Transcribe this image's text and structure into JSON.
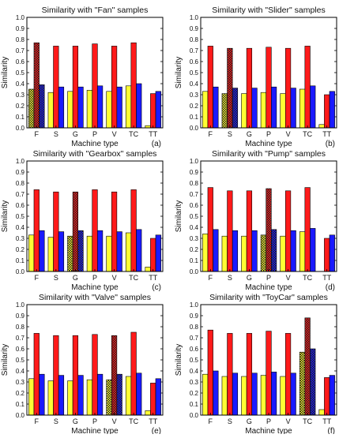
{
  "chart_data": [
    {
      "type": "bar",
      "panel": "(a)",
      "title": "Similarity with \"Fan\" samples",
      "xlabel": "Machine type",
      "ylabel": "Similarity",
      "ylim": [
        0,
        1.0
      ],
      "yticks": [
        "0.0",
        "0.1",
        "0.2",
        "0.3",
        "0.4",
        "0.5",
        "0.6",
        "0.7",
        "0.8",
        "0.9",
        "1.0"
      ],
      "categories": [
        "F",
        "S",
        "G",
        "P",
        "V",
        "TC",
        "TT"
      ],
      "highlight_index": 0,
      "series": [
        {
          "color": "#ffff33",
          "values": [
            0.35,
            0.32,
            0.33,
            0.34,
            0.33,
            0.38,
            0.02
          ]
        },
        {
          "color": "#ff1a1a",
          "values": [
            0.77,
            0.74,
            0.74,
            0.76,
            0.74,
            0.77,
            0.31
          ]
        },
        {
          "color": "#1a1aff",
          "values": [
            0.39,
            0.37,
            0.37,
            0.38,
            0.37,
            0.4,
            0.33
          ]
        }
      ]
    },
    {
      "type": "bar",
      "panel": "(b)",
      "title": "Similarity with \"Slider\" samples",
      "xlabel": "Machine type",
      "ylabel": "Similarity",
      "ylim": [
        0,
        1.0
      ],
      "yticks": [
        "0.0",
        "0.1",
        "0.2",
        "0.3",
        "0.4",
        "0.5",
        "0.6",
        "0.7",
        "0.8",
        "0.9",
        "1.0"
      ],
      "categories": [
        "F",
        "S",
        "G",
        "P",
        "V",
        "TC",
        "TT"
      ],
      "highlight_index": 1,
      "series": [
        {
          "color": "#ffff33",
          "values": [
            0.33,
            0.31,
            0.31,
            0.32,
            0.31,
            0.35,
            0.03
          ]
        },
        {
          "color": "#ff1a1a",
          "values": [
            0.74,
            0.72,
            0.72,
            0.73,
            0.72,
            0.74,
            0.3
          ]
        },
        {
          "color": "#1a1aff",
          "values": [
            0.37,
            0.36,
            0.36,
            0.37,
            0.36,
            0.38,
            0.33
          ]
        }
      ]
    },
    {
      "type": "bar",
      "panel": "(c)",
      "title": "Similarity with \"Gearbox\" samples",
      "xlabel": "Machine type",
      "ylabel": "Similarity",
      "ylim": [
        0,
        1.0
      ],
      "yticks": [
        "0.0",
        "0.1",
        "0.2",
        "0.3",
        "0.4",
        "0.5",
        "0.6",
        "0.7",
        "0.8",
        "0.9",
        "1.0"
      ],
      "categories": [
        "F",
        "S",
        "G",
        "P",
        "V",
        "TC",
        "TT"
      ],
      "highlight_index": 2,
      "series": [
        {
          "color": "#ffff33",
          "values": [
            0.33,
            0.31,
            0.32,
            0.32,
            0.32,
            0.35,
            0.04
          ]
        },
        {
          "color": "#ff1a1a",
          "values": [
            0.74,
            0.72,
            0.72,
            0.74,
            0.72,
            0.74,
            0.3
          ]
        },
        {
          "color": "#1a1aff",
          "values": [
            0.37,
            0.36,
            0.37,
            0.37,
            0.36,
            0.38,
            0.33
          ]
        }
      ]
    },
    {
      "type": "bar",
      "panel": "(d)",
      "title": "Similarity with \"Pump\" samples",
      "xlabel": "Machine type",
      "ylabel": "Similarity",
      "ylim": [
        0,
        1.0
      ],
      "yticks": [
        "0.0",
        "0.1",
        "0.2",
        "0.3",
        "0.4",
        "0.5",
        "0.6",
        "0.7",
        "0.8",
        "0.9",
        "1.0"
      ],
      "categories": [
        "F",
        "S",
        "G",
        "P",
        "V",
        "TC",
        "TT"
      ],
      "highlight_index": 3,
      "series": [
        {
          "color": "#ffff33",
          "values": [
            0.34,
            0.32,
            0.32,
            0.33,
            0.32,
            0.36,
            0.0
          ]
        },
        {
          "color": "#ff1a1a",
          "values": [
            0.76,
            0.73,
            0.73,
            0.75,
            0.73,
            0.76,
            0.3
          ]
        },
        {
          "color": "#1a1aff",
          "values": [
            0.38,
            0.37,
            0.37,
            0.38,
            0.37,
            0.39,
            0.33
          ]
        }
      ]
    },
    {
      "type": "bar",
      "panel": "(e)",
      "title": "Similarity with \"Valve\" samples",
      "xlabel": "Machine type",
      "ylabel": "Similarity",
      "ylim": [
        0,
        1.0
      ],
      "yticks": [
        "0.0",
        "0.1",
        "0.2",
        "0.3",
        "0.4",
        "0.5",
        "0.6",
        "0.7",
        "0.8",
        "0.9",
        "1.0"
      ],
      "categories": [
        "F",
        "S",
        "G",
        "P",
        "V",
        "TC",
        "TT"
      ],
      "highlight_index": 4,
      "series": [
        {
          "color": "#ffff33",
          "values": [
            0.33,
            0.31,
            0.31,
            0.32,
            0.32,
            0.35,
            0.04
          ]
        },
        {
          "color": "#ff1a1a",
          "values": [
            0.74,
            0.72,
            0.72,
            0.73,
            0.72,
            0.75,
            0.29
          ]
        },
        {
          "color": "#1a1aff",
          "values": [
            0.37,
            0.36,
            0.36,
            0.37,
            0.37,
            0.38,
            0.33
          ]
        }
      ]
    },
    {
      "type": "bar",
      "panel": "(f)",
      "title": "Similarity with \"ToyCar\" samples",
      "xlabel": "Machine type",
      "ylabel": "Similarity",
      "ylim": [
        0,
        1.0
      ],
      "yticks": [
        "0.0",
        "0.1",
        "0.2",
        "0.3",
        "0.4",
        "0.5",
        "0.6",
        "0.7",
        "0.8",
        "0.9",
        "1.0"
      ],
      "categories": [
        "F",
        "S",
        "G",
        "P",
        "V",
        "TC",
        "TT"
      ],
      "highlight_index": 5,
      "series": [
        {
          "color": "#ffff33",
          "values": [
            0.37,
            0.35,
            0.35,
            0.36,
            0.35,
            0.57,
            0.05
          ]
        },
        {
          "color": "#ff1a1a",
          "values": [
            0.77,
            0.74,
            0.74,
            0.76,
            0.74,
            0.88,
            0.34
          ]
        },
        {
          "color": "#1a1aff",
          "values": [
            0.4,
            0.38,
            0.38,
            0.39,
            0.38,
            0.6,
            0.36
          ]
        }
      ]
    }
  ]
}
